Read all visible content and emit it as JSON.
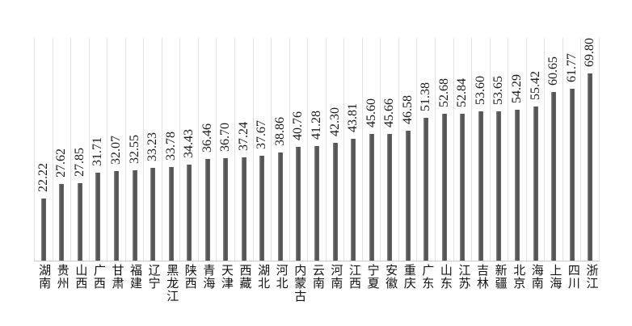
{
  "chart_data": {
    "type": "bar",
    "title": "",
    "xlabel": "",
    "ylabel": "",
    "ylim": [
      0,
      80
    ],
    "legend": "none",
    "grid": "vertical category separator lines only",
    "value_label_rotation_deg": 90,
    "category_label_orientation": "vertical-stacked",
    "bar_color": "#5b5b5b",
    "gridline_color": "#e2e2e2",
    "baseline_color": "#c9c9c9",
    "categories": [
      "湖南",
      "贵州",
      "山西",
      "广西",
      "甘肃",
      "福建",
      "辽宁",
      "黑龙江",
      "陕西",
      "青海",
      "天津",
      "西藏",
      "湖北",
      "河北",
      "内蒙古",
      "云南",
      "河南",
      "江西",
      "宁夏",
      "安徽",
      "重庆",
      "广东",
      "山东",
      "江苏",
      "吉林",
      "新疆",
      "北京",
      "海南",
      "上海",
      "四川",
      "浙江"
    ],
    "values": [
      22.22,
      27.62,
      27.85,
      31.71,
      32.07,
      32.55,
      33.23,
      33.78,
      34.43,
      36.46,
      36.7,
      37.24,
      37.67,
      38.86,
      40.76,
      41.28,
      42.3,
      43.81,
      45.6,
      45.66,
      46.58,
      51.38,
      52.68,
      52.84,
      53.6,
      53.65,
      54.29,
      55.42,
      60.65,
      61.77,
      69.8
    ],
    "values_text": [
      "22.22",
      "27.62",
      "27.85",
      "31.71",
      "32.07",
      "32.55",
      "33.23",
      "33.78",
      "34.43",
      "36.46",
      "36.70",
      "37.24",
      "37.67",
      "38.86",
      "40.76",
      "41.28",
      "42.30",
      "43.81",
      "45.60",
      "45.66",
      "46.58",
      "51.38",
      "52.68",
      "52.84",
      "53.60",
      "53.65",
      "54.29",
      "55.42",
      "60.65",
      "61.77",
      "69.80"
    ]
  }
}
